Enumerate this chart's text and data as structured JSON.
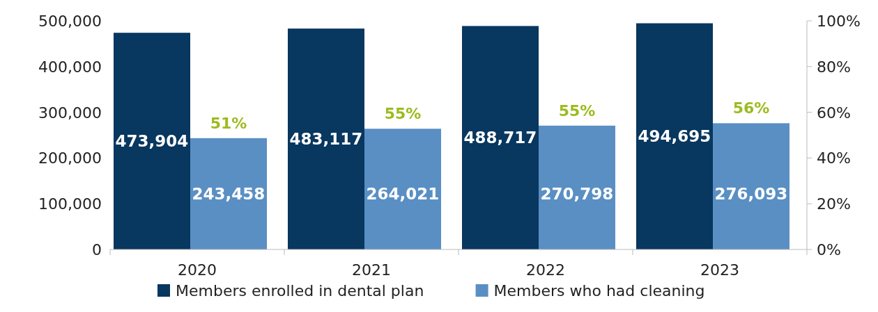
{
  "chart_data": {
    "type": "bar",
    "categories": [
      "2020",
      "2021",
      "2022",
      "2023"
    ],
    "series": [
      {
        "name": "Members enrolled in dental plan",
        "color": "#08375f",
        "values": [
          473904,
          483117,
          488717,
          494695
        ],
        "value_labels": [
          "473,904",
          "483,117",
          "488,717",
          "494,695"
        ]
      },
      {
        "name": "Members who had cleaning",
        "color": "#5a8fc4",
        "values": [
          243458,
          264021,
          270798,
          276093
        ],
        "value_labels": [
          "243,458",
          "264,021",
          "270,798",
          "276,093"
        ]
      }
    ],
    "annotations": [
      {
        "text": "51%",
        "x": "2020",
        "y": 243458
      },
      {
        "text": "55%",
        "x": "2021",
        "y": 264021
      },
      {
        "text": "55%",
        "x": "2022",
        "y": 270798
      },
      {
        "text": "56%",
        "x": "2023",
        "y": 276093
      }
    ],
    "ylim": [
      0,
      500000
    ],
    "yticks": [
      0,
      {
        "value": 100000,
        "label": "100,000"
      },
      {
        "value": 200000,
        "label": "200,000"
      },
      {
        "value": 300000,
        "label": "300,000"
      },
      {
        "value": 400000,
        "label": "400,000"
      },
      {
        "value": 500000,
        "label": "500,000"
      }
    ],
    "y2lim": [
      0,
      100
    ],
    "y2ticks": [
      {
        "value": 0,
        "label": "0%"
      },
      {
        "value": 20,
        "label": "20%"
      },
      {
        "value": 40,
        "label": "40%"
      },
      {
        "value": 60,
        "label": "60%"
      },
      {
        "value": 80,
        "label": "80%"
      },
      {
        "value": 100,
        "label": "100%"
      }
    ],
    "grid": false,
    "legend": "bottom"
  }
}
